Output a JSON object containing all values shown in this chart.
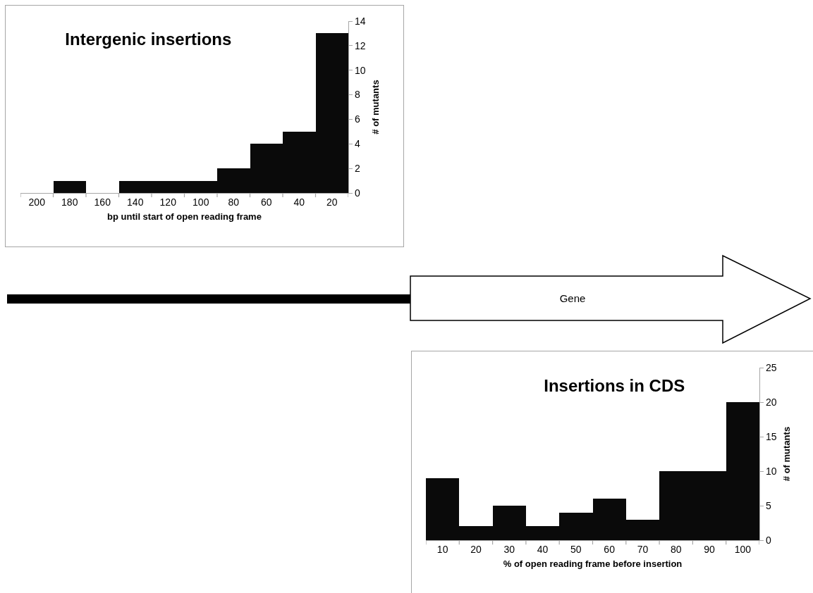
{
  "chart_data": [
    {
      "type": "bar",
      "title": "Intergenic insertions",
      "xlabel": "bp until start of open reading frame",
      "ylabel": "# of mutants",
      "categories": [
        "200",
        "180",
        "160",
        "140",
        "120",
        "100",
        "80",
        "60",
        "40",
        "20"
      ],
      "values": [
        0,
        1,
        0,
        1,
        1,
        1,
        2,
        4,
        5,
        13
      ],
      "color": "#0a0a0a",
      "ylim": [
        0,
        14
      ],
      "yticks": [
        0,
        2,
        4,
        6,
        8,
        10,
        12,
        14
      ]
    },
    {
      "type": "bar",
      "title": "Insertions in CDS",
      "xlabel": "% of open reading frame before insertion",
      "ylabel": "# of mutants",
      "categories": [
        "10",
        "20",
        "30",
        "40",
        "50",
        "60",
        "70",
        "80",
        "90",
        "100"
      ],
      "values": [
        9,
        2,
        5,
        2,
        4,
        6,
        3,
        10,
        10,
        20
      ],
      "color": "#0a0a0a",
      "ylim": [
        0,
        25
      ],
      "yticks": [
        0,
        5,
        10,
        15,
        20,
        25
      ]
    },
    {
      "type": "other",
      "annotations": [
        "Gene"
      ]
    }
  ]
}
